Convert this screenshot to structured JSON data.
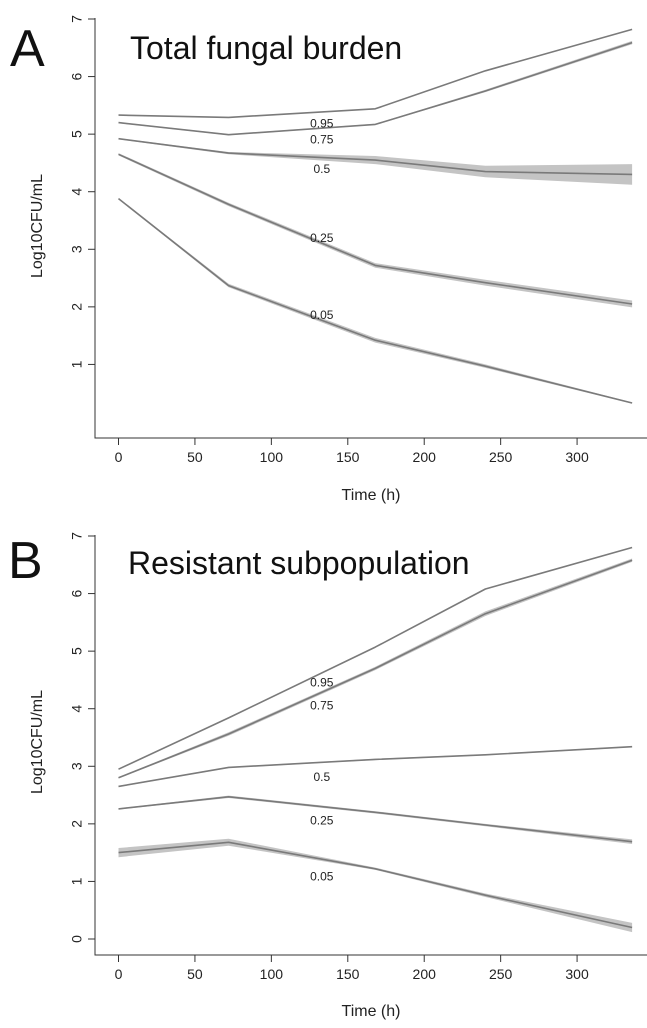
{
  "figure": {
    "colors": {
      "line": "#7a7a7a",
      "band": "#c4c4c4",
      "axis": "#333333",
      "text": "#222222"
    }
  },
  "chart_data": [
    {
      "type": "line",
      "panel": "A",
      "title": "Total fungal burden",
      "xlabel": "Time (h)",
      "ylabel": "Log10CFU/mL",
      "xlim": [
        0,
        336
      ],
      "ylim": [
        0,
        7
      ],
      "xticks": [
        0,
        50,
        100,
        150,
        200,
        250,
        300
      ],
      "yticks": [
        1,
        2,
        3,
        4,
        5,
        6,
        7
      ],
      "grid": false,
      "x": [
        0,
        72,
        168,
        240,
        336
      ],
      "series": [
        {
          "name": "0.95",
          "values": [
            5.33,
            5.29,
            5.44,
            6.1,
            6.82
          ],
          "band": [
            0,
            0,
            0,
            0,
            0
          ]
        },
        {
          "name": "0.75",
          "values": [
            5.2,
            4.99,
            5.17,
            5.75,
            6.59
          ],
          "band": [
            0.01,
            0.01,
            0.01,
            0.02,
            0.03
          ]
        },
        {
          "name": "0.5",
          "values": [
            4.92,
            4.67,
            4.55,
            4.35,
            4.3
          ],
          "band": [
            0.01,
            0.02,
            0.07,
            0.1,
            0.18
          ]
        },
        {
          "name": "0.25",
          "values": [
            4.65,
            3.78,
            2.72,
            2.42,
            2.05
          ],
          "band": [
            0.02,
            0.03,
            0.04,
            0.05,
            0.06
          ]
        },
        {
          "name": "0.05",
          "values": [
            3.88,
            2.37,
            1.42,
            0.97,
            0.33
          ],
          "band": [
            0.01,
            0.03,
            0.04,
            0.03,
            0.01
          ]
        }
      ],
      "labels": [
        {
          "text": "0.95",
          "x": 133,
          "y": 5.17
        },
        {
          "text": "0.75",
          "x": 133,
          "y": 4.89
        },
        {
          "text": "0.5",
          "x": 133,
          "y": 4.38
        },
        {
          "text": "0.25",
          "x": 133,
          "y": 3.18
        },
        {
          "text": "0.05",
          "x": 133,
          "y": 1.84
        }
      ]
    },
    {
      "type": "line",
      "panel": "B",
      "title": "Resistant subpopulation",
      "xlabel": "Time (h)",
      "ylabel": "Log10CFU/mL",
      "xlim": [
        0,
        336
      ],
      "ylim": [
        0,
        7
      ],
      "xticks": [
        0,
        50,
        100,
        150,
        200,
        250,
        300
      ],
      "yticks": [
        0,
        1,
        2,
        3,
        4,
        5,
        6,
        7
      ],
      "grid": false,
      "x": [
        0,
        72,
        168,
        240,
        336
      ],
      "series": [
        {
          "name": "0.95",
          "values": [
            2.95,
            3.84,
            5.07,
            6.08,
            6.8
          ],
          "band": [
            0,
            0,
            0,
            0,
            0
          ]
        },
        {
          "name": "0.75",
          "values": [
            2.8,
            3.56,
            4.7,
            5.65,
            6.58
          ],
          "band": [
            0.01,
            0.03,
            0.03,
            0.04,
            0.03
          ]
        },
        {
          "name": "0.5",
          "values": [
            2.65,
            2.98,
            3.12,
            3.2,
            3.34
          ],
          "band": [
            0.01,
            0.01,
            0.01,
            0.01,
            0.01
          ]
        },
        {
          "name": "0.25",
          "values": [
            2.26,
            2.47,
            2.2,
            1.98,
            1.69
          ],
          "band": [
            0.01,
            0.02,
            0.02,
            0.02,
            0.04
          ]
        },
        {
          "name": "0.05",
          "values": [
            1.5,
            1.68,
            1.22,
            0.76,
            0.2
          ],
          "band": [
            0.08,
            0.06,
            0.02,
            0.03,
            0.08
          ]
        }
      ],
      "labels": [
        {
          "text": "0.95",
          "x": 133,
          "y": 4.44
        },
        {
          "text": "0.75",
          "x": 133,
          "y": 4.04
        },
        {
          "text": "0.5",
          "x": 133,
          "y": 2.8
        },
        {
          "text": "0.25",
          "x": 133,
          "y": 2.04
        },
        {
          "text": "0.05",
          "x": 133,
          "y": 1.07
        }
      ]
    }
  ]
}
